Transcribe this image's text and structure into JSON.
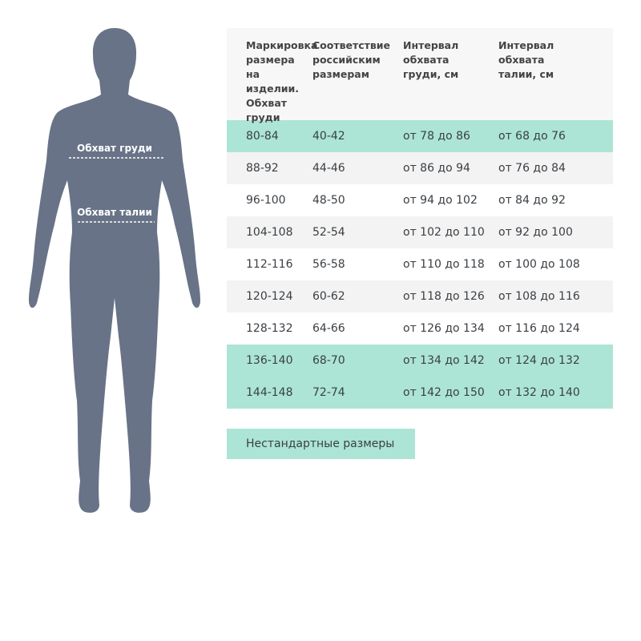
{
  "colors": {
    "silhouette": "#687387",
    "highlight": "#ace5d5",
    "stripe": "#f3f3f3",
    "header": "#f7f7f7"
  },
  "figure": {
    "chest_label": "Обхват груди",
    "waist_label": "Обхват талии"
  },
  "table": {
    "headers": [
      "Маркировка размера на изделии. Обхват груди",
      "Соответствие российским размерам",
      "Интервал обхвата груди, см",
      "Интервал обхвата талии, см"
    ],
    "rows": [
      {
        "style": "teal",
        "cells": [
          "80-84",
          "40-42",
          "от 78 до 86",
          "от 68 до 76"
        ]
      },
      {
        "style": "gray",
        "cells": [
          "88-92",
          "44-46",
          "от 86 до 94",
          "от 76 до 84"
        ]
      },
      {
        "style": "white",
        "cells": [
          "96-100",
          "48-50",
          "от 94 до 102",
          "от 84 до 92"
        ]
      },
      {
        "style": "gray",
        "cells": [
          "104-108",
          "52-54",
          "от 102 до 110",
          "от 92 до 100"
        ]
      },
      {
        "style": "white",
        "cells": [
          "112-116",
          "56-58",
          "от 110 до 118",
          "от 100 до 108"
        ]
      },
      {
        "style": "gray",
        "cells": [
          "120-124",
          "60-62",
          "от 118 до 126",
          "от 108 до 116"
        ]
      },
      {
        "style": "white",
        "cells": [
          "128-132",
          "64-66",
          "от 126 до 134",
          "от 116 до 124"
        ]
      },
      {
        "style": "teal",
        "cells": [
          "136-140",
          "68-70",
          "от 134 до 142",
          "от 124 до 132"
        ]
      },
      {
        "style": "teal",
        "cells": [
          "144-148",
          "72-74",
          "от 142 до 150",
          "от 132 до 140"
        ]
      }
    ]
  },
  "nonstandard_button": "Нестандартные размеры"
}
